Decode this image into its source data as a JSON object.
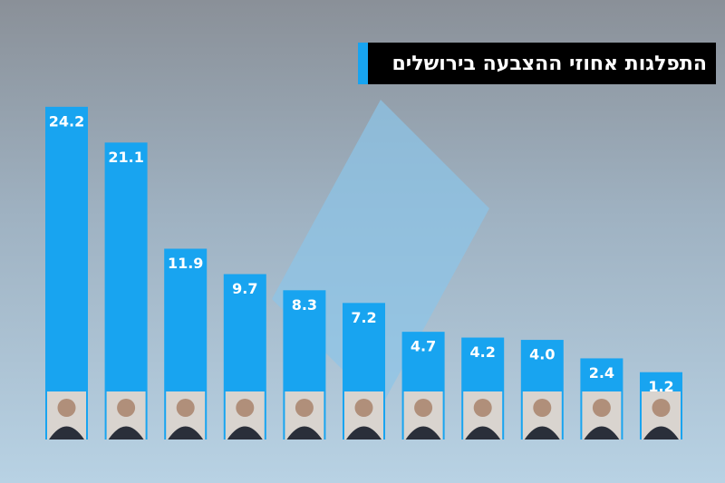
{
  "chart_data": {
    "type": "bar",
    "title": "התפלגות אחוזי ההצבעה בירושלים",
    "values": [
      24.2,
      21.1,
      11.9,
      9.7,
      8.3,
      7.2,
      4.7,
      4.2,
      4.0,
      2.4,
      1.2
    ],
    "value_labels": [
      "24.2",
      "21.1",
      "11.9",
      "9.7",
      "8.3",
      "7.2",
      "4.7",
      "4.2",
      "4.0",
      "2.4",
      "1.2"
    ],
    "color": "#18a4f0",
    "ylim": [
      0,
      30
    ]
  }
}
